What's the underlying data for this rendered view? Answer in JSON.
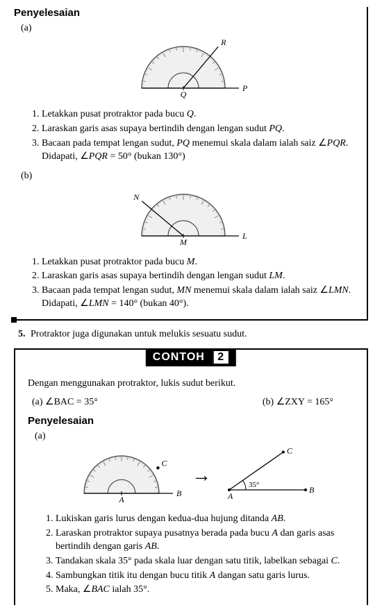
{
  "box1": {
    "heading": "Penyelesaian",
    "partA": {
      "label": "(a)",
      "diagram": {
        "leftLabel": "Q",
        "rightLabel": "P",
        "rayLabel": "R",
        "rayAngle": 50
      },
      "steps": [
        "Letakkan pusat protraktor pada bucu Q.",
        "Laraskan garis asas supaya bertindih dengan lengan sudut PQ.",
        "Bacaan pada tempat lengan sudut, PQ menemui skala dalam ialah saiz ∠PQR. Didapati, ∠PQR = 50° (bukan 130°)"
      ]
    },
    "partB": {
      "label": "(b)",
      "diagram": {
        "leftLabel": "M",
        "rightLabel": "L",
        "rayLabel": "N",
        "rayAngle": 140
      },
      "steps": [
        "Letakkan pusat protraktor pada bucu M.",
        "Laraskan garis asas supaya bertindih dengan lengan sudut LM.",
        "Bacaan pada tempat lengan sudut, MN menemui skala dalam ialah saiz ∠LMN. Didapati, ∠LMN = 140° (bukan 40°)."
      ]
    }
  },
  "statement5": {
    "num": "5.",
    "text": "Protraktor juga digunakan untuk melukis sesuatu sudut."
  },
  "contoh": {
    "label": "CONTOH",
    "number": "2",
    "intro": "Dengan menggunakan protraktor, lukis sudut berikut.",
    "items": {
      "a": "(a)  ∠BAC = 35°",
      "b": "(b)  ∠ZXY = 165°"
    },
    "solution": {
      "heading": "Penyelesaian",
      "partA": {
        "label": "(a)",
        "protDiagram": {
          "leftLabel": "A",
          "rightLabel": "B",
          "markLabel": "C",
          "markAngle": 35
        },
        "angleDiagram": {
          "vertex": "A",
          "right": "B",
          "top": "C",
          "angleText": "35°"
        },
        "steps": [
          "Lukiskan garis lurus dengan kedua-dua hujung ditanda AB.",
          "Laraskan protraktor supaya pusatnya berada pada bucu A dan garis asas bertindih dengan garis AB.",
          "Tandakan skala 35° pada skala luar dengan satu titik, labelkan sebagai C.",
          "Sambungkan titik itu dengan bucu titik A dangan satu garis lurus.",
          "Maka, ∠BAC ialah 35°."
        ]
      }
    }
  },
  "protractorStyle": {
    "outerRadius": 60,
    "innerRadius": 22,
    "fill": "#f0f0f0",
    "stroke": "#333",
    "tickColor": "#555"
  }
}
